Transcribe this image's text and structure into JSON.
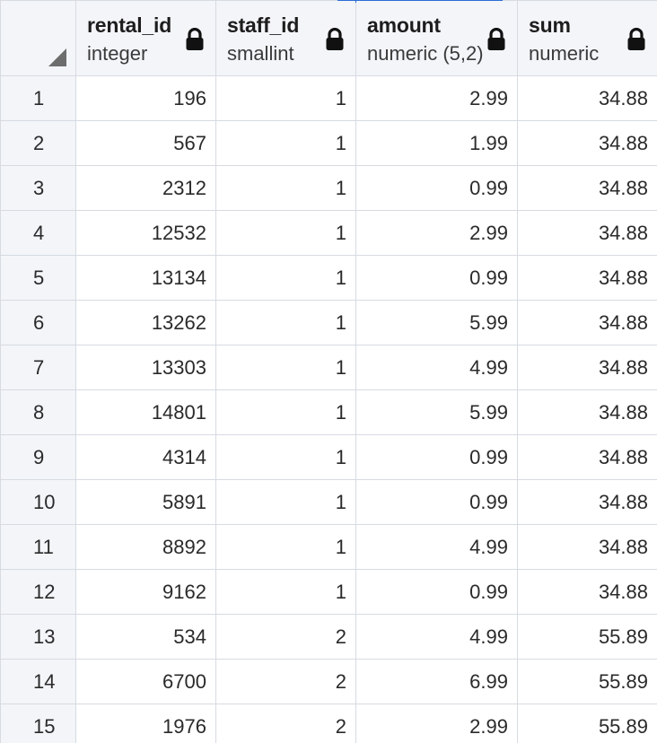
{
  "columns": [
    {
      "name": "rental_id",
      "type": "integer",
      "icon": "lock-icon"
    },
    {
      "name": "staff_id",
      "type": "smallint",
      "icon": "lock-icon"
    },
    {
      "name": "amount",
      "type": "numeric (5,2)",
      "icon": "lock-icon"
    },
    {
      "name": "sum",
      "type": "numeric",
      "icon": "lock-icon"
    }
  ],
  "rows": [
    {
      "n": "1",
      "rental_id": "196",
      "staff_id": "1",
      "amount": "2.99",
      "sum": "34.88"
    },
    {
      "n": "2",
      "rental_id": "567",
      "staff_id": "1",
      "amount": "1.99",
      "sum": "34.88"
    },
    {
      "n": "3",
      "rental_id": "2312",
      "staff_id": "1",
      "amount": "0.99",
      "sum": "34.88"
    },
    {
      "n": "4",
      "rental_id": "12532",
      "staff_id": "1",
      "amount": "2.99",
      "sum": "34.88"
    },
    {
      "n": "5",
      "rental_id": "13134",
      "staff_id": "1",
      "amount": "0.99",
      "sum": "34.88"
    },
    {
      "n": "6",
      "rental_id": "13262",
      "staff_id": "1",
      "amount": "5.99",
      "sum": "34.88"
    },
    {
      "n": "7",
      "rental_id": "13303",
      "staff_id": "1",
      "amount": "4.99",
      "sum": "34.88"
    },
    {
      "n": "8",
      "rental_id": "14801",
      "staff_id": "1",
      "amount": "5.99",
      "sum": "34.88"
    },
    {
      "n": "9",
      "rental_id": "4314",
      "staff_id": "1",
      "amount": "0.99",
      "sum": "34.88"
    },
    {
      "n": "10",
      "rental_id": "5891",
      "staff_id": "1",
      "amount": "0.99",
      "sum": "34.88"
    },
    {
      "n": "11",
      "rental_id": "8892",
      "staff_id": "1",
      "amount": "4.99",
      "sum": "34.88"
    },
    {
      "n": "12",
      "rental_id": "9162",
      "staff_id": "1",
      "amount": "0.99",
      "sum": "34.88"
    },
    {
      "n": "13",
      "rental_id": "534",
      "staff_id": "2",
      "amount": "4.99",
      "sum": "55.89"
    },
    {
      "n": "14",
      "rental_id": "6700",
      "staff_id": "2",
      "amount": "6.99",
      "sum": "55.89"
    },
    {
      "n": "15",
      "rental_id": "1976",
      "staff_id": "2",
      "amount": "2.99",
      "sum": "55.89"
    }
  ],
  "colors": {
    "header_bg": "#f3f5f9",
    "grid_line": "#d6dbe2",
    "accent": "#2b6cd4"
  }
}
